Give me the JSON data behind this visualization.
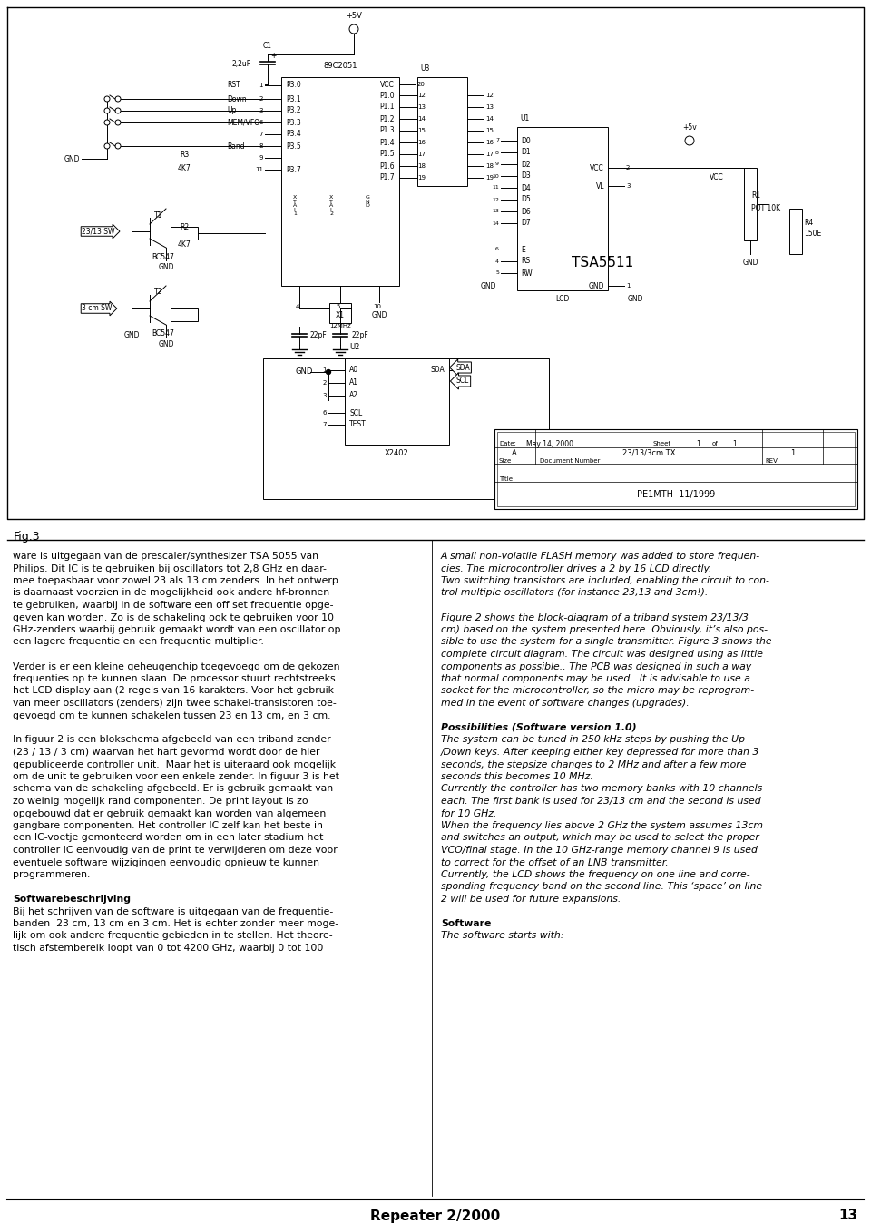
{
  "bg_color": "#ffffff",
  "page_width": 9.6,
  "page_height": 13.49,
  "footer_text": "Repeater 2/2000",
  "footer_page": "13",
  "fig3_label": "Fig.3",
  "title_block": {
    "title_line1": "PE1MTH  11/1999",
    "size_label": "Size",
    "doc_num_label": "Document Number",
    "rev_label": "REV",
    "size_val": "A",
    "doc_num_val": "23/13/3cm TX",
    "rev_val": "1",
    "date_label": "Date:",
    "date_val": "May 14, 2000",
    "sheet_label": "Sheet",
    "sheet_val": "1",
    "of_label": "of",
    "of_val": "1"
  },
  "left_col_text": [
    {
      "bold": false,
      "text": "ware is uitgegaan van de prescaler/synthesizer TSA 5055 van"
    },
    {
      "bold": false,
      "text": "Philips. Dit IC is te gebruiken bij oscillators tot 2,8 GHz en daar-"
    },
    {
      "bold": false,
      "text": "mee toepasbaar voor zowel 23 als 13 cm zenders. In het ontwerp"
    },
    {
      "bold": false,
      "text": "is daarnaast voorzien in de mogelijkheid ook andere hf-bronnen"
    },
    {
      "bold": false,
      "text": "te gebruiken, waarbij in de software een off set frequentie opge-"
    },
    {
      "bold": false,
      "text": "geven kan worden. Zo is de schakeling ook te gebruiken voor 10"
    },
    {
      "bold": false,
      "text": "GHz-zenders waarbij gebruik gemaakt wordt van een oscillator op"
    },
    {
      "bold": false,
      "text": "een lagere frequentie en een frequentie multiplier."
    },
    {
      "bold": false,
      "text": ""
    },
    {
      "bold": false,
      "text": "Verder is er een kleine geheugenchip toegevoegd om de gekozen"
    },
    {
      "bold": false,
      "text": "frequenties op te kunnen slaan. De processor stuurt rechtstreeks"
    },
    {
      "bold": false,
      "text": "het LCD display aan (2 regels van 16 karakters. Voor het gebruik"
    },
    {
      "bold": false,
      "text": "van meer oscillators (zenders) zijn twee schakel-transistoren toe-"
    },
    {
      "bold": false,
      "text": "gevoegd om te kunnen schakelen tussen 23 en 13 cm, en 3 cm."
    },
    {
      "bold": false,
      "text": ""
    },
    {
      "bold": false,
      "text": "In figuur 2 is een blokschema afgebeeld van een triband zender"
    },
    {
      "bold": false,
      "text": "(23 / 13 / 3 cm) waarvan het hart gevormd wordt door de hier"
    },
    {
      "bold": false,
      "text": "gepubliceerde controller unit.  Maar het is uiteraard ook mogelijk"
    },
    {
      "bold": false,
      "text": "om de unit te gebruiken voor een enkele zender. In figuur 3 is het"
    },
    {
      "bold": false,
      "text": "schema van de schakeling afgebeeld. Er is gebruik gemaakt van"
    },
    {
      "bold": false,
      "text": "zo weinig mogelijk rand componenten. De print layout is zo"
    },
    {
      "bold": false,
      "text": "opgebouwd dat er gebruik gemaakt kan worden van algemeen"
    },
    {
      "bold": false,
      "text": "gangbare componenten. Het controller IC zelf kan het beste in"
    },
    {
      "bold": false,
      "text": "een IC-voetje gemonteerd worden om in een later stadium het"
    },
    {
      "bold": false,
      "text": "controller IC eenvoudig van de print te verwijderen om deze voor"
    },
    {
      "bold": false,
      "text": "eventuele software wijzigingen eenvoudig opnieuw te kunnen"
    },
    {
      "bold": false,
      "text": "programmeren."
    },
    {
      "bold": false,
      "text": ""
    },
    {
      "bold": true,
      "text": "Softwarebeschrijving"
    },
    {
      "bold": false,
      "text": "Bij het schrijven van de software is uitgegaan van de frequentie-"
    },
    {
      "bold": false,
      "text": "banden  23 cm, 13 cm en 3 cm. Het is echter zonder meer moge-"
    },
    {
      "bold": false,
      "text": "lijk om ook andere frequentie gebieden in te stellen. Het theore-"
    },
    {
      "bold": false,
      "text": "tisch afstembereik loopt van 0 tot 4200 GHz, waarbij 0 tot 100"
    }
  ],
  "right_col_text": [
    {
      "bold": false,
      "italic": true,
      "text": "A small non-volatile FLASH memory was added to store frequen-"
    },
    {
      "bold": false,
      "italic": true,
      "text": "cies. The microcontroller drives a 2 by 16 LCD directly."
    },
    {
      "bold": false,
      "italic": true,
      "text": "Two switching transistors are included, enabling the circuit to con-"
    },
    {
      "bold": false,
      "italic": true,
      "text": "trol multiple oscillators (for instance 23,13 and 3cm!)."
    },
    {
      "bold": false,
      "italic": false,
      "text": ""
    },
    {
      "bold": false,
      "italic": true,
      "text": "Figure 2 shows the block-diagram of a triband system 23/13/3"
    },
    {
      "bold": false,
      "italic": true,
      "text": "cm) based on the system presented here. Obviously, it’s also pos-"
    },
    {
      "bold": false,
      "italic": true,
      "text": "sible to use the system for a single transmitter. Figure 3 shows the"
    },
    {
      "bold": false,
      "italic": true,
      "text": "complete circuit diagram. The circuit was designed using as little"
    },
    {
      "bold": false,
      "italic": true,
      "text": "components as possible.. The PCB was designed in such a way"
    },
    {
      "bold": false,
      "italic": true,
      "text": "that normal components may be used.  It is advisable to use a"
    },
    {
      "bold": false,
      "italic": true,
      "text": "socket for the microcontroller, so the micro may be reprogram-"
    },
    {
      "bold": false,
      "italic": true,
      "text": "med in the event of software changes (upgrades)."
    },
    {
      "bold": false,
      "italic": false,
      "text": ""
    },
    {
      "bold": true,
      "italic": true,
      "text": "Possibilities (Software version 1.0)"
    },
    {
      "bold": false,
      "italic": true,
      "text": "The system can be tuned in 250 kHz steps by pushing the Up"
    },
    {
      "bold": false,
      "italic": true,
      "text": "/Down keys. After keeping either key depressed for more than 3"
    },
    {
      "bold": false,
      "italic": true,
      "text": "seconds, the stepsize changes to 2 MHz and after a few more"
    },
    {
      "bold": false,
      "italic": true,
      "text": "seconds this becomes 10 MHz."
    },
    {
      "bold": false,
      "italic": true,
      "text": "Currently the controller has two memory banks with 10 channels"
    },
    {
      "bold": false,
      "italic": true,
      "text": "each. The first bank is used for 23/13 cm and the second is used"
    },
    {
      "bold": false,
      "italic": true,
      "text": "for 10 GHz."
    },
    {
      "bold": false,
      "italic": true,
      "text": "When the frequency lies above 2 GHz the system assumes 13cm"
    },
    {
      "bold": false,
      "italic": true,
      "text": "and switches an output, which may be used to select the proper"
    },
    {
      "bold": false,
      "italic": true,
      "text": "VCO/final stage. In the 10 GHz-range memory channel 9 is used"
    },
    {
      "bold": false,
      "italic": true,
      "text": "to correct for the offset of an LNB transmitter."
    },
    {
      "bold": false,
      "italic": true,
      "text": "Currently, the LCD shows the frequency on one line and corre-"
    },
    {
      "bold": false,
      "italic": true,
      "text": "sponding frequency band on the second line. This ‘space’ on line"
    },
    {
      "bold": false,
      "italic": true,
      "text": "2 will be used for future expansions."
    },
    {
      "bold": false,
      "italic": false,
      "text": ""
    },
    {
      "bold": true,
      "italic": false,
      "text": "Software"
    },
    {
      "bold": false,
      "italic": true,
      "text": "The software starts with:"
    }
  ]
}
